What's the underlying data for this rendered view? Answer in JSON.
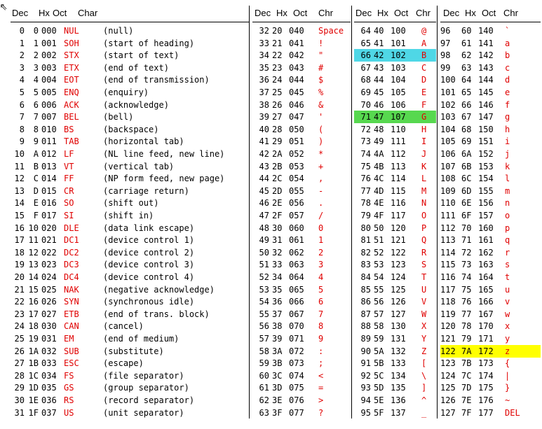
{
  "headers": {
    "p1": [
      "Dec",
      "Hx",
      "Oct",
      "Char"
    ],
    "p2": [
      "Dec",
      "Hx",
      "Oct",
      "Chr"
    ],
    "p3": [
      "Dec",
      "Hx",
      "Oct",
      "Chr"
    ],
    "p4": [
      "Dec",
      "Hx",
      "Oct",
      "Chr"
    ]
  },
  "panel1": [
    [
      "0",
      "0",
      "000",
      "NUL",
      "(null)"
    ],
    [
      "1",
      "1",
      "001",
      "SOH",
      "(start of heading)"
    ],
    [
      "2",
      "2",
      "002",
      "STX",
      "(start of text)"
    ],
    [
      "3",
      "3",
      "003",
      "ETX",
      "(end of text)"
    ],
    [
      "4",
      "4",
      "004",
      "EOT",
      "(end of transmission)"
    ],
    [
      "5",
      "5",
      "005",
      "ENQ",
      "(enquiry)"
    ],
    [
      "6",
      "6",
      "006",
      "ACK",
      "(acknowledge)"
    ],
    [
      "7",
      "7",
      "007",
      "BEL",
      "(bell)"
    ],
    [
      "8",
      "8",
      "010",
      "BS",
      "(backspace)"
    ],
    [
      "9",
      "9",
      "011",
      "TAB",
      "(horizontal tab)"
    ],
    [
      "10",
      "A",
      "012",
      "LF",
      "(NL line feed, new line)"
    ],
    [
      "11",
      "B",
      "013",
      "VT",
      "(vertical tab)"
    ],
    [
      "12",
      "C",
      "014",
      "FF",
      "(NP form feed, new page)"
    ],
    [
      "13",
      "D",
      "015",
      "CR",
      "(carriage return)"
    ],
    [
      "14",
      "E",
      "016",
      "SO",
      "(shift out)"
    ],
    [
      "15",
      "F",
      "017",
      "SI",
      "(shift in)"
    ],
    [
      "16",
      "10",
      "020",
      "DLE",
      "(data link escape)"
    ],
    [
      "17",
      "11",
      "021",
      "DC1",
      "(device control 1)"
    ],
    [
      "18",
      "12",
      "022",
      "DC2",
      "(device control 2)"
    ],
    [
      "19",
      "13",
      "023",
      "DC3",
      "(device control 3)"
    ],
    [
      "20",
      "14",
      "024",
      "DC4",
      "(device control 4)"
    ],
    [
      "21",
      "15",
      "025",
      "NAK",
      "(negative acknowledge)"
    ],
    [
      "22",
      "16",
      "026",
      "SYN",
      "(synchronous idle)"
    ],
    [
      "23",
      "17",
      "027",
      "ETB",
      "(end of trans. block)"
    ],
    [
      "24",
      "18",
      "030",
      "CAN",
      "(cancel)"
    ],
    [
      "25",
      "19",
      "031",
      "EM",
      "(end of medium)"
    ],
    [
      "26",
      "1A",
      "032",
      "SUB",
      "(substitute)"
    ],
    [
      "27",
      "1B",
      "033",
      "ESC",
      "(escape)"
    ],
    [
      "28",
      "1C",
      "034",
      "FS",
      "(file separator)"
    ],
    [
      "29",
      "1D",
      "035",
      "GS",
      "(group separator)"
    ],
    [
      "30",
      "1E",
      "036",
      "RS",
      "(record separator)"
    ],
    [
      "31",
      "1F",
      "037",
      "US",
      "(unit separator)"
    ]
  ],
  "panel2": [
    [
      "32",
      "20",
      "040",
      "Space"
    ],
    [
      "33",
      "21",
      "041",
      "!"
    ],
    [
      "34",
      "22",
      "042",
      "\""
    ],
    [
      "35",
      "23",
      "043",
      "#"
    ],
    [
      "36",
      "24",
      "044",
      "$"
    ],
    [
      "37",
      "25",
      "045",
      "%"
    ],
    [
      "38",
      "26",
      "046",
      "&"
    ],
    [
      "39",
      "27",
      "047",
      "'"
    ],
    [
      "40",
      "28",
      "050",
      "("
    ],
    [
      "41",
      "29",
      "051",
      ")"
    ],
    [
      "42",
      "2A",
      "052",
      "*"
    ],
    [
      "43",
      "2B",
      "053",
      "+"
    ],
    [
      "44",
      "2C",
      "054",
      ","
    ],
    [
      "45",
      "2D",
      "055",
      "-"
    ],
    [
      "46",
      "2E",
      "056",
      "."
    ],
    [
      "47",
      "2F",
      "057",
      "/"
    ],
    [
      "48",
      "30",
      "060",
      "0"
    ],
    [
      "49",
      "31",
      "061",
      "1"
    ],
    [
      "50",
      "32",
      "062",
      "2"
    ],
    [
      "51",
      "33",
      "063",
      "3"
    ],
    [
      "52",
      "34",
      "064",
      "4"
    ],
    [
      "53",
      "35",
      "065",
      "5"
    ],
    [
      "54",
      "36",
      "066",
      "6"
    ],
    [
      "55",
      "37",
      "067",
      "7"
    ],
    [
      "56",
      "38",
      "070",
      "8"
    ],
    [
      "57",
      "39",
      "071",
      "9"
    ],
    [
      "58",
      "3A",
      "072",
      ":"
    ],
    [
      "59",
      "3B",
      "073",
      ";"
    ],
    [
      "60",
      "3C",
      "074",
      "<"
    ],
    [
      "61",
      "3D",
      "075",
      "="
    ],
    [
      "62",
      "3E",
      "076",
      ">"
    ],
    [
      "63",
      "3F",
      "077",
      "?"
    ]
  ],
  "panel3": [
    [
      "64",
      "40",
      "100",
      "@"
    ],
    [
      "65",
      "41",
      "101",
      "A"
    ],
    [
      "66",
      "42",
      "102",
      "B"
    ],
    [
      "67",
      "43",
      "103",
      "C"
    ],
    [
      "68",
      "44",
      "104",
      "D"
    ],
    [
      "69",
      "45",
      "105",
      "E"
    ],
    [
      "70",
      "46",
      "106",
      "F"
    ],
    [
      "71",
      "47",
      "107",
      "G"
    ],
    [
      "72",
      "48",
      "110",
      "H"
    ],
    [
      "73",
      "49",
      "111",
      "I"
    ],
    [
      "74",
      "4A",
      "112",
      "J"
    ],
    [
      "75",
      "4B",
      "113",
      "K"
    ],
    [
      "76",
      "4C",
      "114",
      "L"
    ],
    [
      "77",
      "4D",
      "115",
      "M"
    ],
    [
      "78",
      "4E",
      "116",
      "N"
    ],
    [
      "79",
      "4F",
      "117",
      "O"
    ],
    [
      "80",
      "50",
      "120",
      "P"
    ],
    [
      "81",
      "51",
      "121",
      "Q"
    ],
    [
      "82",
      "52",
      "122",
      "R"
    ],
    [
      "83",
      "53",
      "123",
      "S"
    ],
    [
      "84",
      "54",
      "124",
      "T"
    ],
    [
      "85",
      "55",
      "125",
      "U"
    ],
    [
      "86",
      "56",
      "126",
      "V"
    ],
    [
      "87",
      "57",
      "127",
      "W"
    ],
    [
      "88",
      "58",
      "130",
      "X"
    ],
    [
      "89",
      "59",
      "131",
      "Y"
    ],
    [
      "90",
      "5A",
      "132",
      "Z"
    ],
    [
      "91",
      "5B",
      "133",
      "["
    ],
    [
      "92",
      "5C",
      "134",
      "\\"
    ],
    [
      "93",
      "5D",
      "135",
      "]"
    ],
    [
      "94",
      "5E",
      "136",
      "^"
    ],
    [
      "95",
      "5F",
      "137",
      "_"
    ]
  ],
  "panel4": [
    [
      "96",
      "60",
      "140",
      "`"
    ],
    [
      "97",
      "61",
      "141",
      "a"
    ],
    [
      "98",
      "62",
      "142",
      "b"
    ],
    [
      "99",
      "63",
      "143",
      "c"
    ],
    [
      "100",
      "64",
      "144",
      "d"
    ],
    [
      "101",
      "65",
      "145",
      "e"
    ],
    [
      "102",
      "66",
      "146",
      "f"
    ],
    [
      "103",
      "67",
      "147",
      "g"
    ],
    [
      "104",
      "68",
      "150",
      "h"
    ],
    [
      "105",
      "69",
      "151",
      "i"
    ],
    [
      "106",
      "6A",
      "152",
      "j"
    ],
    [
      "107",
      "6B",
      "153",
      "k"
    ],
    [
      "108",
      "6C",
      "154",
      "l"
    ],
    [
      "109",
      "6D",
      "155",
      "m"
    ],
    [
      "110",
      "6E",
      "156",
      "n"
    ],
    [
      "111",
      "6F",
      "157",
      "o"
    ],
    [
      "112",
      "70",
      "160",
      "p"
    ],
    [
      "113",
      "71",
      "161",
      "q"
    ],
    [
      "114",
      "72",
      "162",
      "r"
    ],
    [
      "115",
      "73",
      "163",
      "s"
    ],
    [
      "116",
      "74",
      "164",
      "t"
    ],
    [
      "117",
      "75",
      "165",
      "u"
    ],
    [
      "118",
      "76",
      "166",
      "v"
    ],
    [
      "119",
      "77",
      "167",
      "w"
    ],
    [
      "120",
      "78",
      "170",
      "x"
    ],
    [
      "121",
      "79",
      "171",
      "y"
    ],
    [
      "122",
      "7A",
      "172",
      "z"
    ],
    [
      "123",
      "7B",
      "173",
      "{"
    ],
    [
      "124",
      "7C",
      "174",
      "|"
    ],
    [
      "125",
      "7D",
      "175",
      "}"
    ],
    [
      "126",
      "7E",
      "176",
      "~"
    ],
    [
      "127",
      "7F",
      "177",
      "DEL"
    ]
  ],
  "highlights": [
    {
      "panel": "panel3",
      "row": 2,
      "color": "cyan"
    },
    {
      "panel": "panel3",
      "row": 7,
      "color": "green"
    },
    {
      "panel": "panel4",
      "row": 26,
      "color": "yellow"
    }
  ],
  "colors": {
    "accent_red": "#e00000",
    "cyan": "#4fd7e6",
    "green": "#57d84f",
    "yellow": "#ffff00"
  }
}
